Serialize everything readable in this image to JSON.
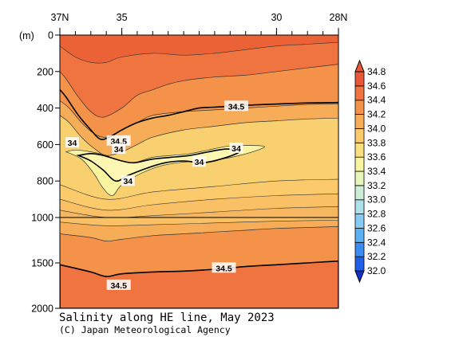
{
  "chart_data": {
    "type": "filled-contour",
    "title": "Salinity along HE line, May 2023",
    "credit": "(C) Japan Meteorological Agency",
    "x_axis": {
      "range": [
        37,
        28
      ],
      "tick_labels": [
        "37N",
        "35",
        "30",
        "28N"
      ],
      "tick_values": [
        37,
        35,
        30,
        28
      ],
      "minor_ticks": [
        37,
        36.5,
        36,
        35.5,
        35,
        34.5,
        34,
        33.5,
        33,
        32.5,
        32,
        31.5,
        31,
        30.5,
        30,
        29.5,
        29,
        28.5,
        28
      ]
    },
    "y_axis": {
      "unit": "(m)",
      "range_upper": [
        0,
        1000
      ],
      "range_lower": [
        1000,
        2000
      ],
      "upper_tick_labels": [
        "0",
        "200",
        "400",
        "600",
        "800",
        "1000"
      ],
      "upper_tick_values": [
        0,
        200,
        400,
        600,
        800,
        1000
      ],
      "lower_tick_labels": [
        "1500",
        "2000"
      ],
      "lower_tick_values": [
        1500,
        2000
      ]
    },
    "colorbar": {
      "levels": [
        32.0,
        32.2,
        32.4,
        32.6,
        32.8,
        33.0,
        33.2,
        33.4,
        33.6,
        33.8,
        34.0,
        34.2,
        34.4,
        34.6,
        34.8
      ],
      "labels": [
        "32.0",
        "32.2",
        "32.4",
        "32.6",
        "32.8",
        "33.0",
        "33.2",
        "33.4",
        "33.6",
        "33.8",
        "34.0",
        "34.2",
        "34.4",
        "34.6",
        "34.8"
      ],
      "colors": [
        "#1030d0",
        "#2060e8",
        "#3a8cf0",
        "#5cb0f4",
        "#86ccf2",
        "#aee2ea",
        "#cdeed6",
        "#e6f5b8",
        "#f8f4a0",
        "#fbe080",
        "#fbca6a",
        "#f7ad58",
        "#f39248",
        "#ef7440",
        "#e85838"
      ],
      "contour_labels": [
        "34",
        "34.5"
      ]
    },
    "sections": [
      {
        "name": "upper",
        "y_range": [
          0,
          1000
        ],
        "fill_order": [
          {
            "level": 34.2,
            "color": "#f7ad58",
            "boundary": [
              [
                37,
                440
              ],
              [
                36.7,
                480
              ],
              [
                36.3,
                560
              ],
              [
                35.9,
                620
              ],
              [
                35.5,
                660
              ],
              [
                35,
                640
              ],
              [
                34.5,
                600
              ],
              [
                34,
                560
              ],
              [
                33,
                520
              ],
              [
                32,
                500
              ],
              [
                31,
                480
              ],
              [
                30,
                470
              ],
              [
                29,
                460
              ],
              [
                28,
                455
              ]
            ]
          },
          {
            "level": 34.4,
            "color": "#f39248",
            "boundary": [
              [
                37,
                360
              ],
              [
                36.7,
                400
              ],
              [
                36.3,
                480
              ],
              [
                35.9,
                540
              ],
              [
                35.5,
                560
              ],
              [
                35,
                520
              ],
              [
                34.5,
                480
              ],
              [
                34,
                440
              ],
              [
                33,
                420
              ],
              [
                32,
                410
              ],
              [
                31,
                400
              ],
              [
                30,
                390
              ],
              [
                29,
                380
              ],
              [
                28,
                378
              ]
            ]
          },
          {
            "level": 34.6,
            "color": "#ef7440",
            "boundary": [
              [
                37,
                200
              ],
              [
                36.8,
                240
              ],
              [
                36.4,
                340
              ],
              [
                36,
                420
              ],
              [
                35.6,
                450
              ],
              [
                35,
                400
              ],
              [
                34.5,
                330
              ],
              [
                34,
                300
              ],
              [
                33.5,
                270
              ],
              [
                33,
                250
              ],
              [
                32,
                230
              ],
              [
                31,
                220
              ],
              [
                30,
                200
              ],
              [
                29,
                180
              ],
              [
                28,
                160
              ]
            ]
          }
        ],
        "low_salinity_core": {
          "level": 33.8,
          "color": "#f8f4a0",
          "boundary": [
            [
              36.8,
              640
            ],
            [
              36.3,
              680
            ],
            [
              35.9,
              760
            ],
            [
              35.6,
              840
            ],
            [
              35.3,
              880
            ],
            [
              35,
              820
            ],
            [
              34.4,
              760
            ],
            [
              33.8,
              720
            ],
            [
              33.2,
              700
            ],
            [
              32.5,
              690
            ],
            [
              31.8,
              680
            ],
            [
              31.2,
              660
            ],
            [
              30.6,
              630
            ],
            [
              30.4,
              610
            ],
            [
              31,
              605
            ],
            [
              31.6,
              610
            ],
            [
              32.2,
              630
            ],
            [
              32.8,
              650
            ],
            [
              33.4,
              660
            ],
            [
              34,
              670
            ],
            [
              34.6,
              700
            ],
            [
              35,
              700
            ],
            [
              35.5,
              660
            ],
            [
              36,
              640
            ],
            [
              36.5,
              630
            ]
          ]
        },
        "core_34": {
          "level": 34.0,
          "color": "#fbca6a"
        }
      },
      {
        "name": "lower",
        "y_range": [
          1000,
          2000
        ],
        "fill_order": [
          {
            "level": 34.4,
            "color": "#f39248",
            "boundary": [
              [
                37,
                1180
              ],
              [
                36,
                1220
              ],
              [
                35.5,
                1260
              ],
              [
                35,
                1240
              ],
              [
                34,
                1200
              ],
              [
                33,
                1180
              ],
              [
                32,
                1160
              ],
              [
                31,
                1140
              ],
              [
                30,
                1120
              ],
              [
                29,
                1110
              ],
              [
                28,
                1100
              ]
            ]
          },
          {
            "level": 34.5,
            "color": "#ef7440",
            "boundary": [
              [
                37,
                1520
              ],
              [
                36,
                1600
              ],
              [
                35.5,
                1650
              ],
              [
                35,
                1620
              ],
              [
                34,
                1600
              ],
              [
                33,
                1590
              ],
              [
                32,
                1570
              ],
              [
                31,
                1540
              ],
              [
                30,
                1520
              ],
              [
                29,
                1500
              ],
              [
                28,
                1480
              ]
            ]
          }
        ]
      }
    ],
    "contour_34_5_label_positions": [
      [
        35.1,
        580
      ],
      [
        31.3,
        390
      ],
      [
        35.1,
        1745
      ],
      [
        31.7,
        1555
      ]
    ],
    "contour_34_label_positions": [
      [
        36.6,
        590
      ],
      [
        35.1,
        625
      ],
      [
        34.8,
        800
      ],
      [
        32.5,
        695
      ],
      [
        31.3,
        620
      ]
    ]
  }
}
